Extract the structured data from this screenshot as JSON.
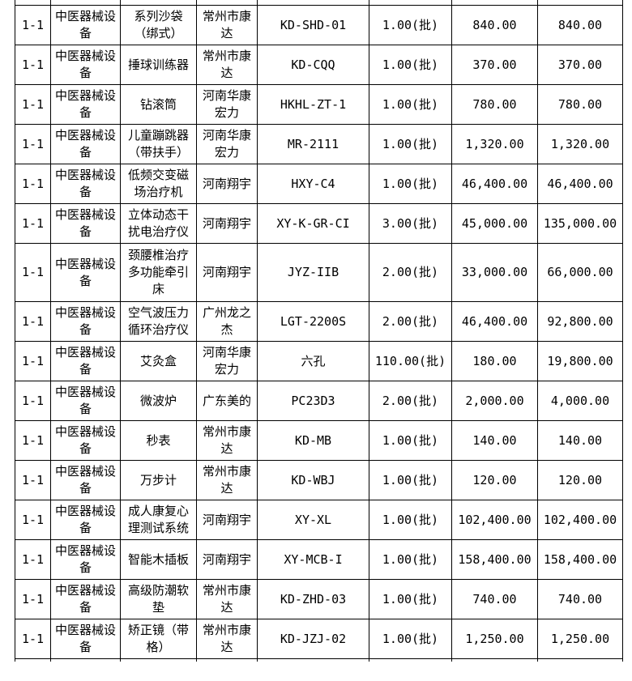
{
  "page": {
    "background_color": "#ffffff",
    "border_color": "#000000",
    "text_color": "#000000"
  },
  "table": {
    "rows": [
      {
        "id": "1-1",
        "category": "中医器械设备",
        "name": "系列沙袋（绑式）",
        "supplier": "常州市康达",
        "model": "KD-SHD-01",
        "qty": "1.00(批)",
        "unit_price": "840.00",
        "total_price": "840.00"
      },
      {
        "id": "1-1",
        "category": "中医器械设备",
        "name": "捶球训练器",
        "supplier": "常州市康达",
        "model": "KD-CQQ",
        "qty": "1.00(批)",
        "unit_price": "370.00",
        "total_price": "370.00"
      },
      {
        "id": "1-1",
        "category": "中医器械设备",
        "name": "钻滚筒",
        "supplier": "河南华康宏力",
        "model": "HKHL-ZT-1",
        "qty": "1.00(批)",
        "unit_price": "780.00",
        "total_price": "780.00"
      },
      {
        "id": "1-1",
        "category": "中医器械设备",
        "name": "儿童蹦跳器（带扶手）",
        "supplier": "河南华康宏力",
        "model": "MR-2111",
        "qty": "1.00(批)",
        "unit_price": "1,320.00",
        "total_price": "1,320.00"
      },
      {
        "id": "1-1",
        "category": "中医器械设备",
        "name": "低频交变磁场治疗机",
        "supplier": "河南翔宇",
        "model": "HXY-C4",
        "qty": "1.00(批)",
        "unit_price": "46,400.00",
        "total_price": "46,400.00"
      },
      {
        "id": "1-1",
        "category": "中医器械设备",
        "name": "立体动态干扰电治疗仪",
        "supplier": "河南翔宇",
        "model": "XY-K-GR-CI",
        "qty": "3.00(批)",
        "unit_price": "45,000.00",
        "total_price": "135,000.00"
      },
      {
        "id": "1-1",
        "category": "中医器械设备",
        "name": "颈腰椎治疗多功能牵引床",
        "supplier": "河南翔宇",
        "model": "JYZ-IIB",
        "qty": "2.00(批)",
        "unit_price": "33,000.00",
        "total_price": "66,000.00"
      },
      {
        "id": "1-1",
        "category": "中医器械设备",
        "name": "空气波压力循环治疗仪",
        "supplier": "广州龙之杰",
        "model": "LGT-2200S",
        "qty": "2.00(批)",
        "unit_price": "46,400.00",
        "total_price": "92,800.00"
      },
      {
        "id": "1-1",
        "category": "中医器械设备",
        "name": "艾灸盒",
        "supplier": "河南华康宏力",
        "model": "六孔",
        "qty": "110.00(批)",
        "unit_price": "180.00",
        "total_price": "19,800.00"
      },
      {
        "id": "1-1",
        "category": "中医器械设备",
        "name": "微波炉",
        "supplier": "广东美的",
        "model": "PC23D3",
        "qty": "2.00(批)",
        "unit_price": "2,000.00",
        "total_price": "4,000.00"
      },
      {
        "id": "1-1",
        "category": "中医器械设备",
        "name": "秒表",
        "supplier": "常州市康达",
        "model": "KD-MB",
        "qty": "1.00(批)",
        "unit_price": "140.00",
        "total_price": "140.00"
      },
      {
        "id": "1-1",
        "category": "中医器械设备",
        "name": "万步计",
        "supplier": "常州市康达",
        "model": "KD-WBJ",
        "qty": "1.00(批)",
        "unit_price": "120.00",
        "total_price": "120.00"
      },
      {
        "id": "1-1",
        "category": "中医器械设备",
        "name": "成人康复心理测试系统",
        "supplier": "河南翔宇",
        "model": "XY-XL",
        "qty": "1.00(批)",
        "unit_price": "102,400.00",
        "total_price": "102,400.00"
      },
      {
        "id": "1-1",
        "category": "中医器械设备",
        "name": "智能木插板",
        "supplier": "河南翔宇",
        "model": "XY-MCB-I",
        "qty": "1.00(批)",
        "unit_price": "158,400.00",
        "total_price": "158,400.00"
      },
      {
        "id": "1-1",
        "category": "中医器械设备",
        "name": "高级防潮软垫",
        "supplier": "常州市康达",
        "model": "KD-ZHD-03",
        "qty": "1.00(批)",
        "unit_price": "740.00",
        "total_price": "740.00"
      },
      {
        "id": "1-1",
        "category": "中医器械设备",
        "name": "矫正镜（带格）",
        "supplier": "常州市康达",
        "model": "KD-JZJ-02",
        "qty": "1.00(批)",
        "unit_price": "1,250.00",
        "total_price": "1,250.00"
      }
    ]
  }
}
